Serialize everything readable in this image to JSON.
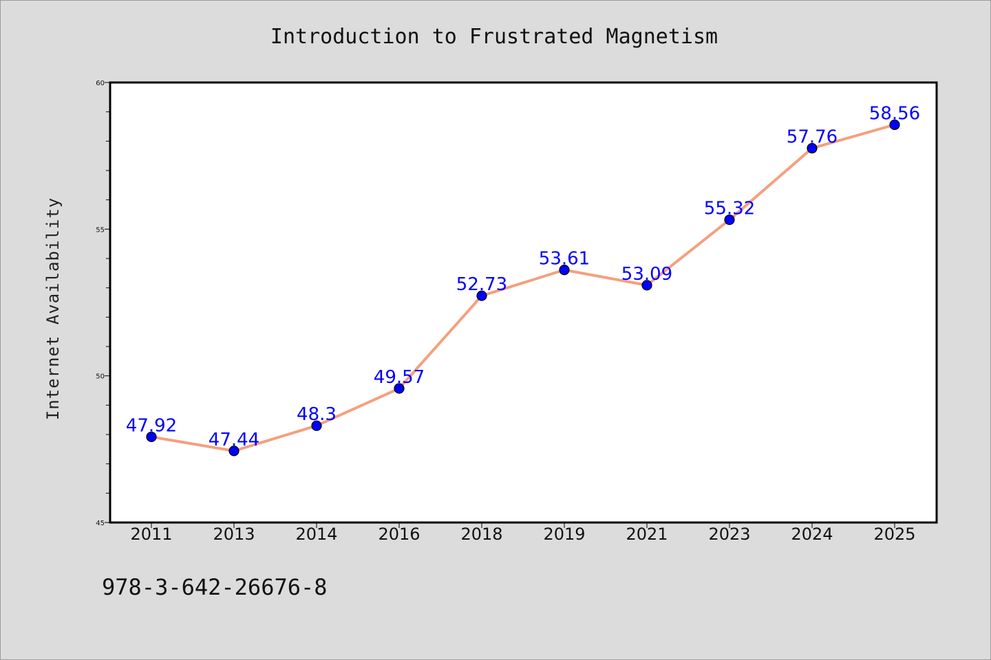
{
  "chart_data": {
    "type": "line",
    "title": "Introduction to Frustrated Magnetism",
    "xlabel": "",
    "ylabel": "Internet Availability",
    "categories": [
      "2011",
      "2013",
      "2014",
      "2016",
      "2018",
      "2019",
      "2021",
      "2023",
      "2024",
      "2025"
    ],
    "series": [
      {
        "values": [
          47.92,
          47.44,
          48.3,
          49.57,
          52.73,
          53.61,
          53.09,
          55.32,
          57.76,
          58.56
        ],
        "labels": [
          "47.92",
          "47.44",
          "48.3",
          "49.57",
          "52.73",
          "53.61",
          "53.09",
          "55.32",
          "57.76",
          "58.56"
        ]
      }
    ],
    "ylim": [
      45,
      60
    ],
    "yticks": [
      "45",
      "50",
      "55",
      "60"
    ],
    "grid": false,
    "legend": "none",
    "colors": {
      "line": "#f4a07e",
      "marker": "#0000ff",
      "data_label": "#0000ff",
      "plot_background": "#ffffff",
      "page_background": "#dcdcdc"
    }
  },
  "footer": {
    "isbn": "978-3-642-26676-8"
  }
}
